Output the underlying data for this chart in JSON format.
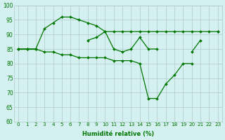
{
  "xlabel": "Humidité relative (%)",
  "x": [
    0,
    1,
    2,
    3,
    4,
    5,
    6,
    7,
    8,
    9,
    10,
    11,
    12,
    13,
    14,
    15,
    16,
    17,
    18,
    19,
    20,
    21,
    22,
    23
  ],
  "lineA": [
    85,
    85,
    85,
    92,
    94,
    96,
    96,
    95,
    94,
    93,
    91,
    91,
    91,
    91,
    91,
    91,
    91,
    91,
    91,
    91,
    91,
    91,
    91,
    91
  ],
  "lineB": [
    85,
    85,
    85,
    null,
    null,
    null,
    null,
    null,
    88,
    89,
    91,
    85,
    84,
    85,
    89,
    85,
    85,
    null,
    null,
    null,
    84,
    88,
    null,
    91
  ],
  "lineC": [
    85,
    85,
    85,
    84,
    84,
    83,
    83,
    82,
    82,
    82,
    82,
    81,
    81,
    81,
    80,
    68,
    68,
    73,
    76,
    80,
    80,
    null,
    null,
    null
  ],
  "ylim": [
    60,
    100
  ],
  "yticks": [
    60,
    65,
    70,
    75,
    80,
    85,
    90,
    95,
    100
  ],
  "line_color": "#007700",
  "bg_color": "#d4f0f0",
  "grid_color": "#b0c8c8"
}
